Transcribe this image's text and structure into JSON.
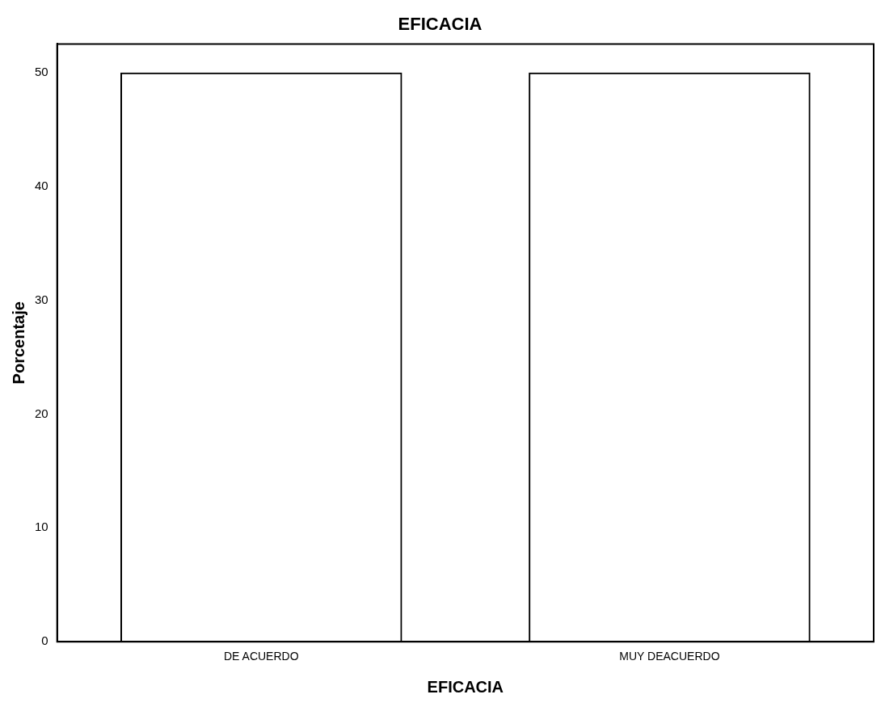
{
  "chart_data": {
    "type": "bar",
    "title": "EFICACIA",
    "xlabel": "EFICACIA",
    "ylabel": "Porcentaje",
    "categories": [
      "DE ACUERDO",
      "MUY DEACUERDO"
    ],
    "values": [
      50,
      50
    ],
    "color": "#000000",
    "ylim": [
      0,
      52.5
    ],
    "yticks": [
      0,
      10,
      20,
      30,
      40,
      50
    ],
    "grid": false,
    "legend": false
  }
}
